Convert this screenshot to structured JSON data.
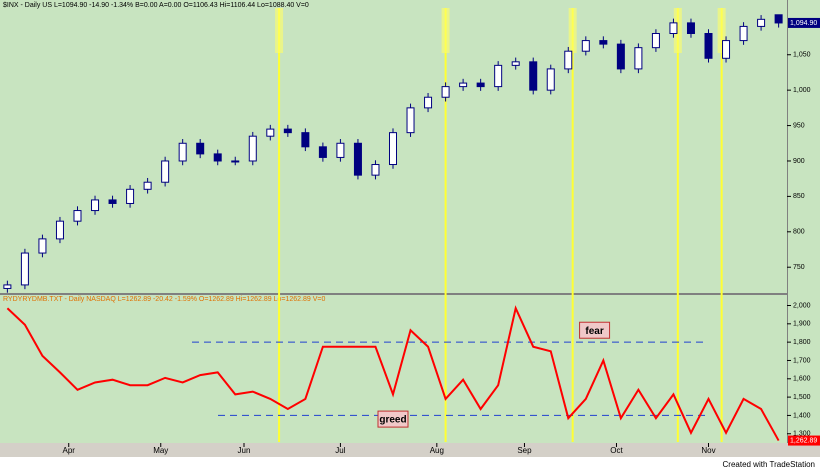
{
  "chart_data": [
    {
      "type": "candlestick",
      "title": "$INX - Daily  US   L=1094.90  -14.90  -1.34%  B=0.00  A=0.00  O=1106.43  Hi=1106.44  Lo=1088.40  V=0",
      "last_label": "1,094.90",
      "color": "#000080",
      "xlim": [
        -1,
        177
      ],
      "ylim": [
        715,
        1116
      ],
      "yticks": [
        750,
        800,
        850,
        900,
        950,
        {
          "value": 1000,
          "label": "1,000"
        },
        {
          "value": 1050,
          "label": "1,050"
        }
      ],
      "vlines": [
        62,
        100,
        129,
        153,
        163
      ],
      "x": [
        0,
        4,
        8,
        12,
        16,
        20,
        24,
        28,
        32,
        36,
        40,
        44,
        48,
        52,
        56,
        60,
        64,
        68,
        72,
        76,
        80,
        84,
        88,
        92,
        96,
        100,
        104,
        108,
        112,
        116,
        120,
        124,
        128,
        132,
        136,
        140,
        144,
        148,
        152,
        156,
        160,
        164,
        168,
        172,
        176
      ],
      "open": [
        720,
        725,
        770,
        790,
        815,
        830,
        845,
        840,
        860,
        870,
        900,
        925,
        910,
        900,
        900,
        935,
        945,
        940,
        920,
        905,
        925,
        880,
        895,
        940,
        975,
        990,
        1005,
        1010,
        1005,
        1035,
        1040,
        1000,
        1030,
        1055,
        1070,
        1065,
        1030,
        1060,
        1080,
        1095,
        1080,
        1045,
        1070,
        1090,
        1106.43
      ],
      "high": [
        731,
        776,
        796,
        821,
        836,
        851,
        851,
        866,
        876,
        906,
        931,
        931,
        916,
        906,
        941,
        951,
        951,
        946,
        926,
        931,
        931,
        901,
        946,
        981,
        996,
        1011,
        1016,
        1016,
        1041,
        1046,
        1046,
        1036,
        1061,
        1076,
        1076,
        1071,
        1066,
        1086,
        1101,
        1101,
        1086,
        1076,
        1096,
        1106,
        1106.44
      ],
      "low": [
        714,
        719,
        764,
        784,
        809,
        824,
        834,
        834,
        854,
        864,
        894,
        904,
        894,
        894,
        894,
        929,
        934,
        914,
        899,
        899,
        874,
        874,
        889,
        934,
        969,
        984,
        999,
        999,
        999,
        1029,
        994,
        994,
        1024,
        1049,
        1059,
        1024,
        1024,
        1054,
        1074,
        1074,
        1039,
        1039,
        1064,
        1084,
        1088.4
      ],
      "close": [
        725,
        770,
        790,
        815,
        830,
        845,
        840,
        860,
        870,
        900,
        925,
        910,
        900,
        900,
        935,
        945,
        940,
        920,
        905,
        925,
        880,
        895,
        940,
        975,
        990,
        1005,
        1010,
        1005,
        1035,
        1040,
        1000,
        1030,
        1055,
        1070,
        1065,
        1030,
        1060,
        1080,
        1095,
        1080,
        1045,
        1070,
        1090,
        1100,
        1094.9
      ]
    },
    {
      "type": "line",
      "title": "RYDYRYDMB.TXT - Daily  NASDAQ   L=1262.89  -20.42  -1.59%  O=1262.89  Hi=1262.89  Lo=1262.89  V=0",
      "last_label": "1,262.89",
      "color": "#ff0000",
      "xlim": [
        -1,
        177
      ],
      "ylim": [
        1255,
        2030
      ],
      "yticks": [
        {
          "value": 1300,
          "label": "1,300"
        },
        {
          "value": 1400,
          "label": "1,400"
        },
        {
          "value": 1500,
          "label": "1,500"
        },
        {
          "value": 1600,
          "label": "1,600"
        },
        {
          "value": 1700,
          "label": "1,700"
        },
        {
          "value": 1800,
          "label": "1,800"
        },
        {
          "value": 1900,
          "label": "1,900"
        },
        {
          "value": 2000,
          "label": "2,000"
        }
      ],
      "xticks": [
        {
          "value": 14,
          "label": "Apr"
        },
        {
          "value": 35,
          "label": "May"
        },
        {
          "value": 54,
          "label": "Jun"
        },
        {
          "value": 76,
          "label": "Jul"
        },
        {
          "value": 98,
          "label": "Aug"
        },
        {
          "value": 118,
          "label": "Sep"
        },
        {
          "value": 139,
          "label": "Oct"
        },
        {
          "value": 160,
          "label": "Nov"
        }
      ],
      "hlines": [
        1800,
        1400
      ],
      "annotations": [
        {
          "text": "fear",
          "x": 134,
          "y": 1865
        },
        {
          "text": "greed",
          "x": 88,
          "y": 1380
        }
      ],
      "x": [
        0,
        4,
        8,
        12,
        16,
        20,
        24,
        28,
        32,
        36,
        40,
        44,
        48,
        52,
        56,
        60,
        64,
        68,
        72,
        76,
        80,
        84,
        88,
        92,
        96,
        100,
        104,
        108,
        112,
        116,
        120,
        124,
        128,
        132,
        136,
        140,
        144,
        148,
        152,
        156,
        160,
        164,
        168,
        172,
        176
      ],
      "values": [
        1985,
        1895,
        1725,
        1635,
        1540,
        1580,
        1595,
        1565,
        1565,
        1605,
        1580,
        1620,
        1635,
        1515,
        1530,
        1490,
        1435,
        1490,
        1775,
        1775,
        1775,
        1775,
        1515,
        1865,
        1775,
        1490,
        1595,
        1435,
        1565,
        1985,
        1775,
        1750,
        1385,
        1490,
        1700,
        1385,
        1540,
        1385,
        1515,
        1305,
        1490,
        1305,
        1490,
        1435,
        1262.89
      ]
    }
  ],
  "footer": "Created with TradeStation"
}
